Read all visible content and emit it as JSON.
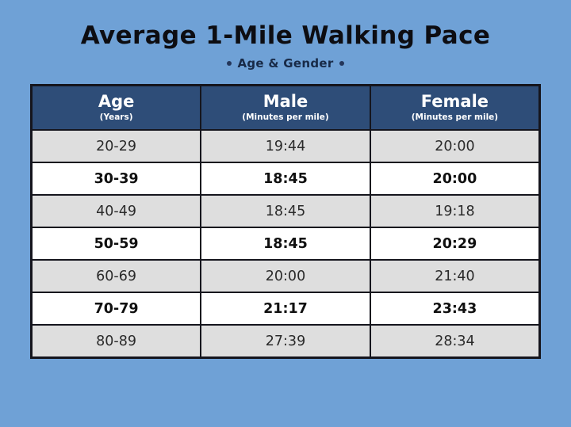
{
  "colors": {
    "background": "#6fa1d6",
    "header_bg": "#2e4d78",
    "row_alt_bg": "#dedede",
    "row_bg": "#ffffff",
    "border": "#15151d",
    "title_text": "#0d0d12",
    "subtitle_text": "#182a47",
    "dot_accent": "#24365a"
  },
  "icons": {
    "left_dot": "dot-icon",
    "right_dot": "dot-icon"
  },
  "chart_data": {
    "type": "table",
    "title": "Average 1-Mile Walking Pace",
    "subtitle": "Age & Gender",
    "header": {
      "age": {
        "label": "Age",
        "sub": "(Years)"
      },
      "male": {
        "label": "Male",
        "sub": "(Minutes per mile)"
      },
      "female": {
        "label": "Female",
        "sub": "(Minutes per mile)"
      }
    },
    "columns": [
      "Age (Years)",
      "Male (Minutes per mile)",
      "Female (Minutes per mile)"
    ],
    "categories": [
      "20-29",
      "30-39",
      "40-49",
      "50-59",
      "60-69",
      "70-79",
      "80-89"
    ],
    "series": [
      {
        "name": "Male",
        "values": [
          "19:44",
          "18:45",
          "18:45",
          "18:45",
          "20:00",
          "21:17",
          "27:39"
        ]
      },
      {
        "name": "Female",
        "values": [
          "20:00",
          "20:00",
          "19:18",
          "20:29",
          "21:40",
          "23:43",
          "28:34"
        ]
      }
    ],
    "rows": [
      {
        "age": "20-29",
        "male": "19:44",
        "female": "20:00"
      },
      {
        "age": "30-39",
        "male": "18:45",
        "female": "20:00"
      },
      {
        "age": "40-49",
        "male": "18:45",
        "female": "19:18"
      },
      {
        "age": "50-59",
        "male": "18:45",
        "female": "20:29"
      },
      {
        "age": "60-69",
        "male": "20:00",
        "female": "21:40"
      },
      {
        "age": "70-79",
        "male": "21:17",
        "female": "23:43"
      },
      {
        "age": "80-89",
        "male": "27:39",
        "female": "28:34"
      }
    ]
  }
}
